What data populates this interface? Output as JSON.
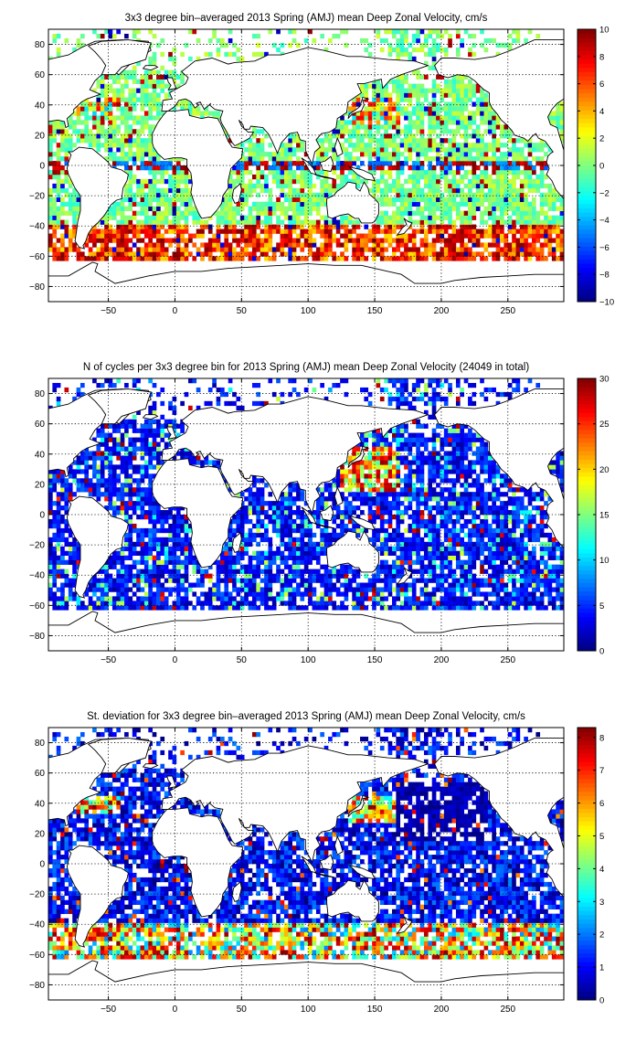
{
  "chart_data": [
    {
      "type": "heatmap",
      "title": "3x3 degree bin–averaged 2013 Spring (AMJ) mean Deep Zonal Velocity, cm/s",
      "x_ticks": [
        -50,
        0,
        50,
        100,
        150,
        200,
        250
      ],
      "y_ticks": [
        -80,
        -60,
        -40,
        -20,
        0,
        20,
        40,
        60,
        80
      ],
      "xlim": [
        -95,
        292
      ],
      "ylim": [
        -90,
        90
      ],
      "grid": true,
      "bin_size_deg": 3,
      "colormap": "jet",
      "colorbar": {
        "min": -10,
        "max": 10,
        "ticks": [
          10,
          8,
          6,
          4,
          2,
          0,
          -2,
          -4,
          -6,
          -8,
          -10
        ]
      },
      "field": "deep zonal velocity (cm/s), mostly between -2 and 2 in ocean interiors, strong eastward (up to 10) band around 40–60 S and near equatorial currents"
    },
    {
      "type": "heatmap",
      "title": "N of cycles per 3x3 degree bin for 2013 Spring (AMJ) mean Deep Zonal Velocity (24049 in total)",
      "x_ticks": [
        -50,
        0,
        50,
        100,
        150,
        200,
        250
      ],
      "y_ticks": [
        -80,
        -60,
        -40,
        -20,
        0,
        20,
        40,
        60,
        80
      ],
      "xlim": [
        -95,
        292
      ],
      "ylim": [
        -90,
        90
      ],
      "grid": true,
      "bin_size_deg": 3,
      "colormap": "jet",
      "colorbar": {
        "min": 0,
        "max": 30,
        "ticks": [
          30,
          25,
          20,
          15,
          10,
          5,
          0
        ]
      },
      "field": "number of float cycles per bin, mostly 1–5, higher (20–30) in the NW Pacific / Kuroshio region"
    },
    {
      "type": "heatmap",
      "title": "St. deviation for 3x3 degree bin–averaged 2013 Spring (AMJ) mean Deep Zonal Velocity, cm/s",
      "x_ticks": [
        -50,
        0,
        50,
        100,
        150,
        200,
        250
      ],
      "y_ticks": [
        -80,
        -60,
        -40,
        -20,
        0,
        20,
        40,
        60,
        80
      ],
      "xlim": [
        -95,
        292
      ],
      "ylim": [
        -90,
        90
      ],
      "grid": true,
      "bin_size_deg": 3,
      "colormap": "jet",
      "colorbar": {
        "min": 0,
        "max": 8.3,
        "ticks": [
          8,
          7,
          6,
          5,
          4,
          3,
          2,
          1,
          0
        ]
      },
      "field": "standard deviation (cm/s), mostly 0–2, high (6–8) in Southern Ocean and western boundary currents"
    }
  ]
}
